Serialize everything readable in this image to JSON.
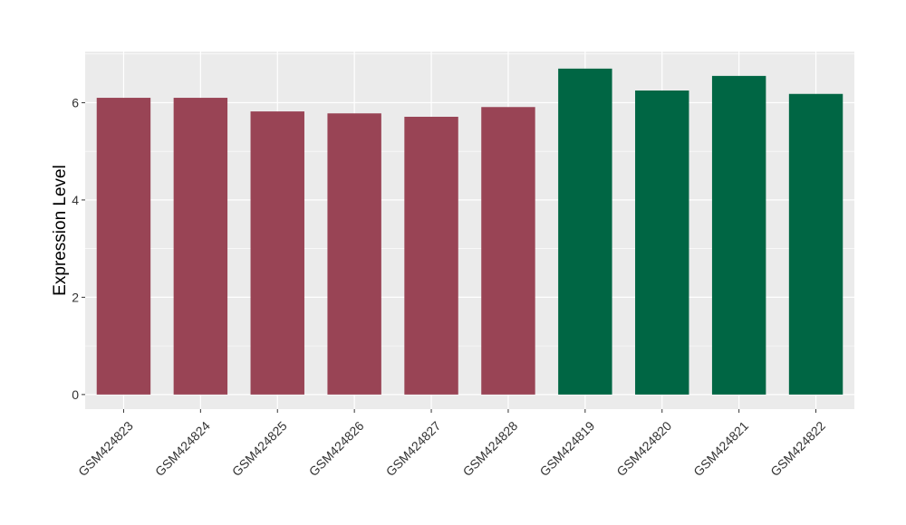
{
  "chart_data": {
    "type": "bar",
    "title": "",
    "xlabel": "",
    "ylabel": "Expression Level",
    "ylim": [
      -0.3,
      7.05
    ],
    "yticks": [
      0,
      2,
      4,
      6
    ],
    "grid": true,
    "categories": [
      "GSM424823",
      "GSM424824",
      "GSM424825",
      "GSM424826",
      "GSM424827",
      "GSM424828",
      "GSM424819",
      "GSM424820",
      "GSM424821",
      "GSM424822"
    ],
    "values": [
      6.1,
      6.1,
      5.82,
      5.78,
      5.71,
      5.91,
      6.7,
      6.25,
      6.55,
      6.18
    ],
    "bar_colors": [
      "#994455",
      "#994455",
      "#994455",
      "#994455",
      "#994455",
      "#994455",
      "#006644",
      "#006644",
      "#006644",
      "#006644"
    ],
    "panel_background": "#ebebeb",
    "gridline_color": "#ffffff"
  }
}
